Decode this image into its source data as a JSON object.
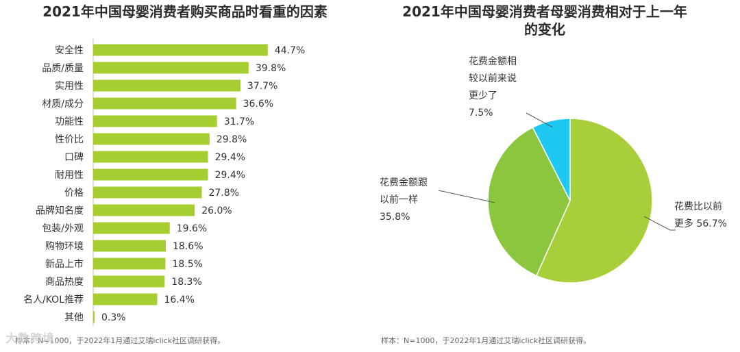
{
  "chart_data": [
    {
      "type": "bar",
      "orientation": "horizontal",
      "title": "2021年中国母婴消费者购买商品时看重的因素",
      "categories": [
        "安全性",
        "品质/质量",
        "实用性",
        "材质/成分",
        "功能性",
        "性价比",
        "口碑",
        "耐用性",
        "价格",
        "品牌知名度",
        "包装/外观",
        "购物环境",
        "新品上市",
        "商品热度",
        "名人/KOL推荐",
        "其他"
      ],
      "values": [
        44.7,
        39.8,
        37.7,
        36.6,
        31.7,
        29.8,
        29.4,
        29.4,
        27.8,
        26.0,
        19.6,
        18.6,
        18.5,
        18.3,
        16.4,
        0.3
      ],
      "value_labels": [
        "44.7%",
        "39.8%",
        "37.7%",
        "36.6%",
        "31.7%",
        "29.8%",
        "29.4%",
        "29.4%",
        "27.8%",
        "26.0%",
        "19.6%",
        "18.6%",
        "18.5%",
        "18.3%",
        "16.4%",
        "0.3%"
      ],
      "xlim": [
        0,
        50
      ],
      "color": "#a6cd32",
      "note": "样本：N=1000，于2022年1月通过艾瑞iclick社区调研获得。"
    },
    {
      "type": "pie",
      "title_lines": [
        "2021年中国母婴消费者母婴消费相对于上一年",
        "的变化"
      ],
      "slices": [
        {
          "label_lines": [
            "花费比以前",
            "更多 56.7%"
          ],
          "value": 56.7,
          "color": "#a8cf3a"
        },
        {
          "label_lines": [
            "花费金额跟",
            "以前一样",
            "35.8%"
          ],
          "value": 35.8,
          "color": "#8cc63f"
        },
        {
          "label_lines": [
            "花费金额相",
            "较以前来说",
            "更少了",
            "7.5%"
          ],
          "value": 7.5,
          "color": "#1ec8f0"
        }
      ],
      "note": "样本：N=1000，于2022年1月通过艾瑞iclick社区调研获得。"
    }
  ],
  "watermark": "大数跨境"
}
